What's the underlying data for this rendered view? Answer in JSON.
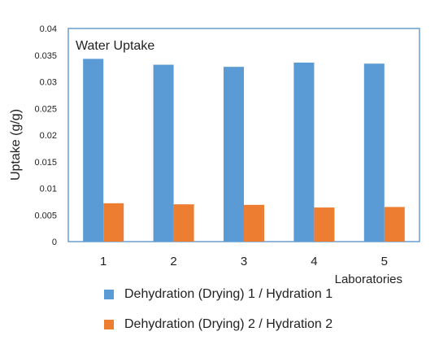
{
  "chart_data": {
    "type": "bar",
    "title": "Water Uptake",
    "xlabel": "Laboratories",
    "ylabel": "Uptake (g/g)",
    "categories": [
      "1",
      "2",
      "3",
      "4",
      "5"
    ],
    "ylim": [
      0,
      0.04
    ],
    "yticks": [
      "0",
      "0.005",
      "0.01",
      "0.015",
      "0.02",
      "0.025",
      "0.03",
      "0.035",
      "0.04"
    ],
    "grid": false,
    "legend_position": "bottom",
    "series": [
      {
        "name": "Dehydration (Drying) 1 / Hydration 1",
        "color": "#5b9bd5",
        "values": [
          0.0343,
          0.0332,
          0.0328,
          0.0336,
          0.0334
        ]
      },
      {
        "name": "Dehydration (Drying) 2 / Hydration 2",
        "color": "#ed7d31",
        "values": [
          0.0072,
          0.007,
          0.0069,
          0.0064,
          0.0065
        ]
      }
    ]
  }
}
